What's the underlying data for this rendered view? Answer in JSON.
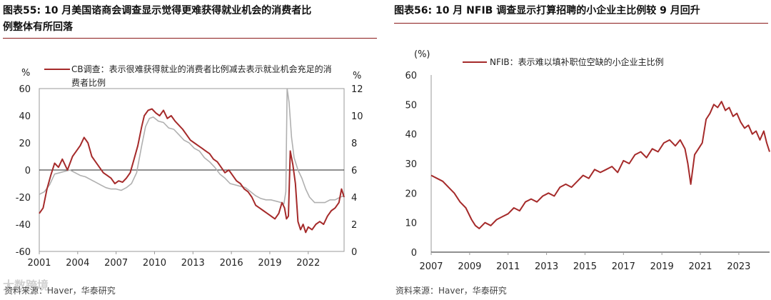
{
  "panels": [
    {
      "title_line1": "图表55:  10 月美国谘商会调查显示觉得更难获得就业机会的消费者比",
      "title_line2": "例整体有所回落",
      "source": "资料来源：Haver，华泰研究",
      "watermark": "大数跨境"
    },
    {
      "title_line1": "图表56:  10 月 NFIB 调查显示打算招聘的小企业主比例较 9 月回升",
      "title_line2": "",
      "source": "资料来源：Haver，华泰研究"
    }
  ],
  "colors": {
    "primary": "#a52a2a",
    "secondary": "#b0b0b0",
    "rule": "#8b1a1a"
  },
  "chart_data": [
    {
      "type": "line",
      "ylabel_left": "%",
      "ylabel_right": "%",
      "ylim_left": [
        -60,
        60
      ],
      "ylim_right": [
        0,
        12
      ],
      "yticks_left": [
        "60",
        "40",
        "20",
        "0",
        "-20",
        "-40",
        "-60"
      ],
      "yticks_right": [
        "12",
        "10",
        "8",
        "6",
        "4",
        "2",
        "0"
      ],
      "xlim": [
        2001,
        2024.8
      ],
      "xticks": [
        "2001",
        "2004",
        "2007",
        "2010",
        "2013",
        "2016",
        "2019",
        "2022"
      ],
      "legend": "top-left",
      "series": [
        {
          "name": "CB调查：表示很难获得就业的消费者比例减去表示就业机会充足的消费者比例",
          "axis": "left",
          "color": "#a52a2a",
          "x": [
            2001.0,
            2001.3,
            2001.6,
            2001.9,
            2002.2,
            2002.5,
            2002.8,
            2003.2,
            2003.6,
            2003.9,
            2004.2,
            2004.5,
            2004.8,
            2005.1,
            2005.4,
            2005.7,
            2006.0,
            2006.3,
            2006.6,
            2006.9,
            2007.2,
            2007.5,
            2007.8,
            2008.1,
            2008.4,
            2008.7,
            2009.0,
            2009.2,
            2009.5,
            2009.8,
            2010.1,
            2010.4,
            2010.7,
            2011.0,
            2011.3,
            2011.6,
            2011.9,
            2012.2,
            2012.5,
            2012.8,
            2013.1,
            2013.4,
            2013.7,
            2014.0,
            2014.3,
            2014.6,
            2014.9,
            2015.2,
            2015.5,
            2015.8,
            2016.1,
            2016.4,
            2016.7,
            2017.0,
            2017.3,
            2017.6,
            2017.9,
            2018.2,
            2018.5,
            2018.8,
            2019.1,
            2019.4,
            2019.7,
            2019.95,
            2020.15,
            2020.3,
            2020.45,
            2020.6,
            2020.8,
            2021.0,
            2021.2,
            2021.4,
            2021.6,
            2021.8,
            2022.0,
            2022.3,
            2022.6,
            2022.9,
            2023.2,
            2023.5,
            2023.8,
            2024.1,
            2024.4,
            2024.6,
            2024.8
          ],
          "y": [
            -32,
            -28,
            -14,
            -4,
            5,
            2,
            8,
            0,
            10,
            14,
            18,
            24,
            20,
            10,
            6,
            2,
            -2,
            -4,
            -6,
            -10,
            -8,
            -9,
            -6,
            -2,
            8,
            18,
            32,
            40,
            44,
            45,
            42,
            40,
            44,
            38,
            40,
            36,
            33,
            30,
            26,
            22,
            20,
            18,
            16,
            14,
            12,
            8,
            6,
            2,
            -2,
            0,
            -4,
            -8,
            -10,
            -14,
            -16,
            -20,
            -26,
            -28,
            -30,
            -32,
            -34,
            -36,
            -32,
            -24,
            -28,
            -36,
            -34,
            14,
            4,
            -10,
            -38,
            -44,
            -40,
            -46,
            -42,
            -44,
            -40,
            -38,
            -40,
            -34,
            -30,
            -28,
            -24,
            -14,
            -20
          ]
        },
        {
          "name": "",
          "axis": "right",
          "color": "#b0b0b0",
          "x": [
            2001.0,
            2001.4,
            2001.8,
            2002.2,
            2002.6,
            2003.0,
            2003.4,
            2003.8,
            2004.2,
            2004.6,
            2005.0,
            2005.4,
            2005.8,
            2006.2,
            2006.6,
            2007.0,
            2007.4,
            2007.8,
            2008.2,
            2008.6,
            2009.0,
            2009.3,
            2009.6,
            2009.9,
            2010.3,
            2010.7,
            2011.1,
            2011.5,
            2011.9,
            2012.3,
            2012.7,
            2013.1,
            2013.5,
            2013.9,
            2014.3,
            2014.7,
            2015.1,
            2015.5,
            2015.9,
            2016.3,
            2016.7,
            2017.1,
            2017.5,
            2017.9,
            2018.3,
            2018.7,
            2019.1,
            2019.5,
            2019.9,
            2020.1,
            2020.25,
            2020.35,
            2020.5,
            2020.7,
            2020.9,
            2021.2,
            2021.5,
            2021.8,
            2022.1,
            2022.5,
            2022.9,
            2023.3,
            2023.7,
            2024.1,
            2024.5,
            2024.8
          ],
          "y": [
            4.2,
            4.4,
            4.9,
            5.7,
            5.8,
            5.9,
            6.0,
            5.8,
            5.6,
            5.5,
            5.3,
            5.1,
            4.9,
            4.7,
            4.6,
            4.6,
            4.5,
            4.7,
            5.0,
            5.8,
            7.8,
            9.2,
            9.8,
            9.9,
            9.6,
            9.5,
            9.1,
            9.0,
            8.6,
            8.2,
            8.0,
            7.6,
            7.4,
            6.9,
            6.6,
            6.2,
            5.7,
            5.4,
            5.0,
            4.9,
            4.8,
            4.7,
            4.4,
            4.1,
            3.9,
            3.8,
            3.8,
            3.7,
            3.6,
            3.5,
            4.4,
            12.0,
            11.0,
            8.4,
            6.9,
            6.0,
            5.4,
            4.6,
            4.0,
            3.6,
            3.6,
            3.6,
            3.8,
            3.8,
            4.0,
            4.1
          ]
        }
      ]
    },
    {
      "type": "line",
      "ylabel": "(%)",
      "ylim": [
        0,
        60
      ],
      "yticks": [
        "60",
        "50",
        "40",
        "30",
        "20",
        "10",
        "0"
      ],
      "xlim": [
        2007,
        2024.6
      ],
      "xticks": [
        "2007",
        "2009",
        "2011",
        "2013",
        "2015",
        "2017",
        "2019",
        "2021",
        "2023"
      ],
      "legend": "top-left",
      "series": [
        {
          "name": "NFIB：表示难以填补职位空缺的小企业主比例",
          "color": "#a52a2a",
          "x": [
            2007.0,
            2007.3,
            2007.6,
            2007.9,
            2008.2,
            2008.5,
            2008.8,
            2009.1,
            2009.3,
            2009.5,
            2009.8,
            2010.1,
            2010.4,
            2010.7,
            2011.0,
            2011.3,
            2011.6,
            2011.9,
            2012.2,
            2012.5,
            2012.8,
            2013.1,
            2013.4,
            2013.7,
            2014.0,
            2014.3,
            2014.6,
            2014.9,
            2015.2,
            2015.5,
            2015.8,
            2016.1,
            2016.4,
            2016.7,
            2017.0,
            2017.3,
            2017.6,
            2017.9,
            2018.2,
            2018.5,
            2018.8,
            2019.1,
            2019.4,
            2019.7,
            2019.95,
            2020.2,
            2020.35,
            2020.5,
            2020.7,
            2020.9,
            2021.1,
            2021.3,
            2021.5,
            2021.7,
            2021.9,
            2022.1,
            2022.3,
            2022.5,
            2022.7,
            2022.9,
            2023.1,
            2023.3,
            2023.5,
            2023.7,
            2023.9,
            2024.1,
            2024.3,
            2024.45,
            2024.6
          ],
          "y": [
            26,
            25,
            24,
            22,
            20,
            17,
            15,
            11,
            9,
            8,
            10,
            9,
            11,
            12,
            13,
            15,
            14,
            17,
            18,
            17,
            19,
            20,
            19,
            22,
            23,
            22,
            24,
            26,
            25,
            28,
            27,
            28,
            29,
            27,
            31,
            30,
            33,
            34,
            32,
            35,
            34,
            37,
            38,
            36,
            38,
            35,
            30,
            23,
            33,
            35,
            37,
            45,
            47,
            50,
            49,
            51,
            48,
            49,
            46,
            47,
            44,
            42,
            43,
            40,
            41,
            38,
            41,
            37,
            34
          ]
        }
      ]
    }
  ]
}
